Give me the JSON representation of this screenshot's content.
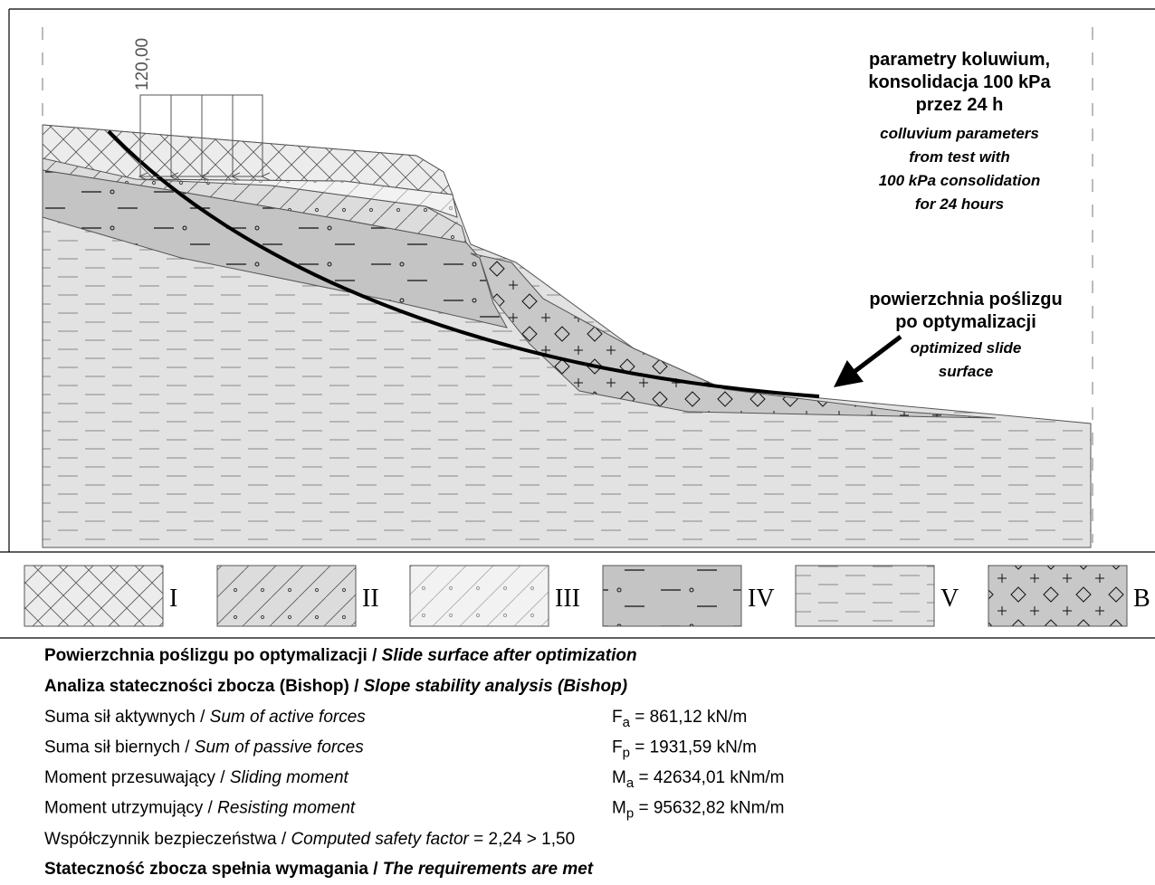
{
  "load": "120,00",
  "annotations": {
    "params_pl": [
      "parametry koluwium,",
      "konsolidacja 100 kPa",
      "przez 24 h"
    ],
    "params_en": [
      "colluvium parameters",
      "from test with",
      "100 kPa consolidation",
      "for 24 hours"
    ],
    "slide_pl": [
      "powierzchnia poślizgu",
      "po optymalizacji"
    ],
    "slide_en": [
      "optimized slide",
      "surface"
    ]
  },
  "legend": [
    "I",
    "II",
    "III",
    "IV",
    "V",
    "B"
  ],
  "results": {
    "heading": {
      "pl": "Powierzchnia poślizgu po optymalizacji / ",
      "en": "Slide surface after optimization"
    },
    "analysis": {
      "pl": "Analiza stateczności zbocza (Bishop) / ",
      "en": "Slope stability analysis (Bishop)"
    },
    "rows": [
      {
        "pl": "Suma sił aktywnych / ",
        "en": "Sum of active forces",
        "symbol": "F",
        "sub": "a",
        "value": " =    861,12 kN/m"
      },
      {
        "pl": "Suma sił biernych / ",
        "en": "Sum of passive forces",
        "symbol": "F",
        "sub": "p",
        "value": " =  1931,59 kN/m"
      },
      {
        "pl": "Moment przesuwający / ",
        "en": "Sliding moment",
        "symbol": "M",
        "sub": "a",
        "value": " = 42634,01 kNm/m"
      },
      {
        "pl": "Moment utrzymujący / ",
        "en": "Resisting moment",
        "symbol": "M",
        "sub": "p",
        "value": " = 95632,82 kNm/m"
      }
    ],
    "safety": {
      "pl": "Współczynnik bezpieczeństwa / ",
      "en": "Computed safety factor",
      "value": " = 2,24 > 1,50"
    },
    "conclusion": {
      "pl": "Stateczność zbocza spełnia wymagania / ",
      "en": "The requirements are met"
    }
  }
}
